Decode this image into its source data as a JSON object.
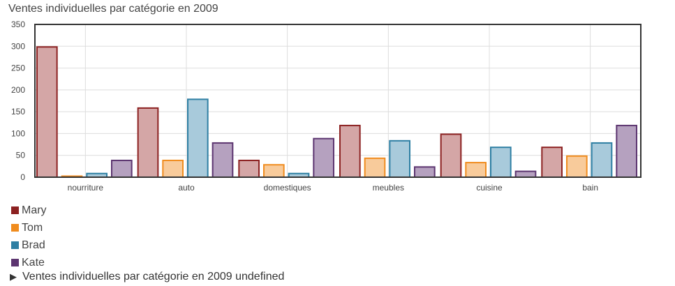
{
  "chart_data": {
    "type": "bar",
    "title": "Ventes individuelles par catégorie en 2009",
    "categories": [
      "nourriture",
      "auto",
      "domestiques",
      "meubles",
      "cuisine",
      "bain"
    ],
    "series": [
      {
        "name": "Mary",
        "color": "#8c2121",
        "fill": "#d4a6a6",
        "values": [
          300,
          160,
          40,
          120,
          100,
          70
        ]
      },
      {
        "name": "Tom",
        "color": "#f08c1e",
        "fill": "#f8cb9b",
        "values": [
          4,
          40,
          30,
          45,
          35,
          50
        ]
      },
      {
        "name": "Brad",
        "color": "#2e7fa3",
        "fill": "#a8cadb",
        "values": [
          10,
          180,
          10,
          85,
          70,
          80
        ]
      },
      {
        "name": "Kate",
        "color": "#5c3570",
        "fill": "#b5a1bf",
        "values": [
          40,
          80,
          90,
          25,
          15,
          120
        ]
      }
    ],
    "ylim": [
      0,
      350
    ],
    "yticks": [
      0,
      50,
      100,
      150,
      200,
      250,
      300,
      350
    ],
    "grid": true,
    "legend_position": "bottom-left"
  },
  "summary": {
    "text": "Ventes individuelles par catégorie en 2009 undefined"
  }
}
